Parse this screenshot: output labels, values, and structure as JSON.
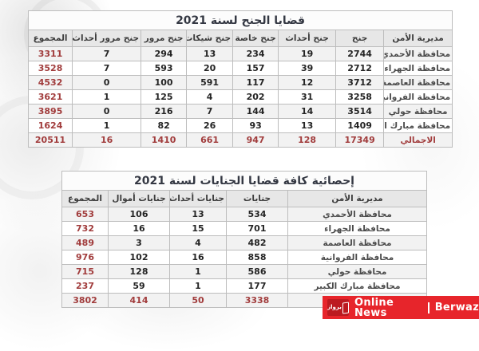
{
  "chart_data": [
    {
      "type": "table",
      "title": "قضايا الجنح لسنة 2021",
      "columns": [
        "مديرية الأمن",
        "جنح",
        "جنح أحداث",
        "جنح خاصة",
        "جنح شيكات",
        "جنح مرور",
        "جنح مرور أحداث",
        "المجموع"
      ],
      "rows": [
        {
          "name": "محافظة الأحمدي",
          "values": [
            2744,
            19,
            234,
            13,
            294,
            7
          ],
          "total": 3311,
          "is_total": false
        },
        {
          "name": "محافظة الجهراء",
          "values": [
            2712,
            39,
            157,
            20,
            593,
            7
          ],
          "total": 3528,
          "is_total": false
        },
        {
          "name": "محافظة العاصمة",
          "values": [
            3712,
            12,
            117,
            591,
            100,
            0
          ],
          "total": 4532,
          "is_total": false
        },
        {
          "name": "محافظة الفروانية",
          "values": [
            3258,
            31,
            202,
            4,
            125,
            1
          ],
          "total": 3621,
          "is_total": false
        },
        {
          "name": "محافظة حولي",
          "values": [
            3514,
            14,
            144,
            7,
            216,
            0
          ],
          "total": 3895,
          "is_total": false
        },
        {
          "name": "محافظة مبارك الكبير",
          "values": [
            1409,
            13,
            93,
            26,
            82,
            1
          ],
          "total": 1624,
          "is_total": false
        },
        {
          "name": "الاجمالي",
          "values": [
            17349,
            128,
            947,
            661,
            1410,
            16
          ],
          "total": 20511,
          "is_total": true
        }
      ]
    },
    {
      "type": "table",
      "title": "إحصائية كافة قضايا الجنايات لسنة 2021",
      "columns": [
        "مديرية الأمن",
        "جنايات",
        "جنايات أحداث",
        "جنايات أموال",
        "المجموع"
      ],
      "rows": [
        {
          "name": "محافظة الأحمدي",
          "values": [
            534,
            13,
            106
          ],
          "total": 653,
          "is_total": false
        },
        {
          "name": "محافظة الجهراء",
          "values": [
            701,
            15,
            16
          ],
          "total": 732,
          "is_total": false
        },
        {
          "name": "محافظة العاصمة",
          "values": [
            482,
            4,
            3
          ],
          "total": 489,
          "is_total": false
        },
        {
          "name": "محافظة الفروانية",
          "values": [
            858,
            16,
            102
          ],
          "total": 976,
          "is_total": false
        },
        {
          "name": "محافظة حولي",
          "values": [
            586,
            1,
            128
          ],
          "total": 715,
          "is_total": false
        },
        {
          "name": "محافظة مبارك الكبير",
          "values": [
            177,
            1,
            59
          ],
          "total": 237,
          "is_total": false
        },
        {
          "name": "",
          "values": [
            3338,
            50,
            414
          ],
          "total": 3802,
          "is_total": true
        }
      ]
    }
  ],
  "watermark": {
    "logo_text": "برواز",
    "text_primary": "Online News",
    "text_secondary": "Berwaz",
    "banner_color": "#e7252b",
    "logo_color": "#bc1a20"
  },
  "colors": {
    "accent_red": "#a13c3c",
    "header_gray": "#e7e7e7",
    "row_alt_gray": "#f2f2f2"
  }
}
